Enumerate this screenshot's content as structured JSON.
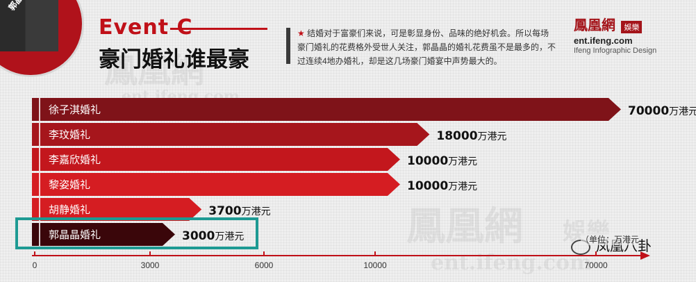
{
  "header": {
    "badge_text": "郭晶晶霍启刚大婚",
    "eyebrow": "Event C",
    "title": "豪门婚礼谁最豪",
    "description": "结婚对于富豪们来说，可是彰显身份、品味的绝好机会。所以每场豪门婚礼的花费格外受世人关注，郭晶晶的婚礼花费虽不是最多的，不过连续4地办婚礼，却是这几场豪门婚宴中声势最大的。",
    "description_icon": "star-icon"
  },
  "logo": {
    "name": "鳳凰網",
    "tag": "娛樂",
    "domain": "ent.ifeng.com",
    "tagline": "Ifeng Infographic Design"
  },
  "watermark": {
    "name": "鳳凰網",
    "domain": "ent.ifeng.com",
    "tag": "娛樂"
  },
  "footer": {
    "unit_note": "（单位：万港元",
    "wechat_label": "凤凰八卦",
    "wechat_icon": "wechat-icon"
  },
  "chart_data": {
    "type": "bar",
    "orientation": "horizontal",
    "categories": [
      "徐子淇婚礼",
      "李玟婚礼",
      "李嘉欣婚礼",
      "黎姿婚礼",
      "胡静婚礼",
      "郭晶晶婚礼"
    ],
    "values": [
      70000,
      18000,
      10000,
      10000,
      3700,
      3000
    ],
    "value_labels": [
      "70000",
      "18000",
      "10000",
      "10000",
      "3700",
      "3000"
    ],
    "value_unit": "万港元",
    "colors": [
      "#7f1319",
      "#a6161c",
      "#c3171d",
      "#d51d22",
      "#d51d22",
      "#3a060a"
    ],
    "highlight_index": 5,
    "highlight_color": "#1e9a93",
    "x_ticks": [
      "0",
      "3000",
      "6000",
      "10000",
      "70000"
    ],
    "x_tick_values": [
      0,
      3000,
      6000,
      10000,
      70000
    ],
    "scale": "broken / non-linear",
    "grid": false
  }
}
